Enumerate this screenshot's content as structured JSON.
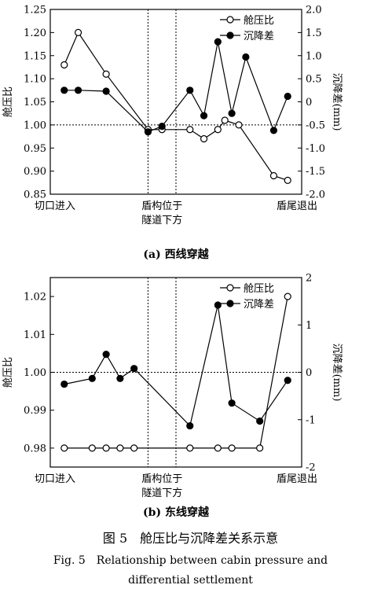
{
  "chart_data": [
    {
      "type": "line",
      "subtitle": "(a) 西线穿越",
      "ylabel": "舱压比",
      "y2label": "沉降差(mm)",
      "ylim": [
        0.85,
        1.25
      ],
      "y2lim": [
        -2.0,
        2.0
      ],
      "yticks": [
        "0.85",
        "0.90",
        "0.95",
        "1.00",
        "1.05",
        "1.10",
        "1.15",
        "1.20",
        "1.25"
      ],
      "y2ticks": [
        "-2.0",
        "-1.5",
        "-1.0",
        "-0.5",
        "0",
        "0.5",
        "1.0",
        "1.5",
        "2.0"
      ],
      "xlim": [
        0,
        18
      ],
      "x_labels": {
        "start": "切口进入",
        "middle_line1": "盾构位于",
        "middle_line2": "隧道下方",
        "end": "盾尾退出"
      },
      "vlines": [
        7,
        9
      ],
      "ref_y2": -0.5,
      "legend": "top-right",
      "series": [
        {
          "name": "舱压比",
          "axis": "left",
          "marker": "open",
          "points": [
            [
              1,
              1.13
            ],
            [
              2,
              1.2
            ],
            [
              4,
              1.11
            ],
            [
              7,
              0.99
            ],
            [
              8,
              0.99
            ],
            [
              10,
              0.99
            ],
            [
              11,
              0.97
            ],
            [
              12,
              0.99
            ],
            [
              12.5,
              1.01
            ],
            [
              13.5,
              1.0
            ],
            [
              16,
              0.89
            ],
            [
              17,
              0.88
            ]
          ]
        },
        {
          "name": "沉降差",
          "axis": "right",
          "marker": "filled",
          "points": [
            [
              1,
              0.25
            ],
            [
              2,
              0.25
            ],
            [
              4,
              0.23
            ],
            [
              7,
              -0.65
            ],
            [
              8,
              -0.53
            ],
            [
              10,
              0.25
            ],
            [
              11,
              -0.3
            ],
            [
              12,
              1.3
            ],
            [
              13,
              -0.25
            ],
            [
              14,
              0.97
            ],
            [
              16,
              -0.62
            ],
            [
              17,
              0.12
            ]
          ]
        }
      ]
    },
    {
      "type": "line",
      "subtitle": "(b) 东线穿越",
      "ylabel": "舱压比",
      "y2label": "沉降差(mm)",
      "ylim": [
        0.975,
        1.025
      ],
      "y2lim": [
        -2,
        2
      ],
      "yticks": [
        "0.98",
        "0.99",
        "1.00",
        "1.01",
        "1.02"
      ],
      "ytick_values": [
        0.98,
        0.99,
        1.0,
        1.01,
        1.02
      ],
      "y2ticks": [
        "-2",
        "-1",
        "0",
        "1",
        "2"
      ],
      "y2tick_values": [
        -2,
        -1,
        0,
        1,
        2
      ],
      "xlim": [
        0,
        18
      ],
      "x_labels": {
        "start": "切口进入",
        "middle_line1": "盾构位于",
        "middle_line2": "隧道下方",
        "end": "盾尾退出"
      },
      "vlines": [
        7,
        9
      ],
      "ref_y2": 0,
      "legend": "top-right",
      "series": [
        {
          "name": "舱压比",
          "axis": "left",
          "marker": "open",
          "points": [
            [
              1,
              0.98
            ],
            [
              3,
              0.98
            ],
            [
              4,
              0.98
            ],
            [
              5,
              0.98
            ],
            [
              6,
              0.98
            ],
            [
              10,
              0.98
            ],
            [
              12,
              0.98
            ],
            [
              13,
              0.98
            ],
            [
              15,
              0.98
            ],
            [
              17,
              1.02
            ]
          ]
        },
        {
          "name": "沉降差",
          "axis": "right",
          "marker": "filled",
          "points": [
            [
              1,
              -0.25
            ],
            [
              3,
              -0.13
            ],
            [
              4,
              0.38
            ],
            [
              5,
              -0.13
            ],
            [
              6,
              0.08
            ],
            [
              10,
              -1.13
            ],
            [
              12,
              1.42
            ],
            [
              13,
              -0.65
            ],
            [
              15,
              -1.03
            ],
            [
              17,
              -0.17
            ]
          ]
        }
      ]
    }
  ],
  "caption": {
    "cn": "图 5　舱压比与沉降差关系示意",
    "en_line1": "Fig. 5　Relationship between cabin pressure and",
    "en_line2": "differential settlement"
  }
}
